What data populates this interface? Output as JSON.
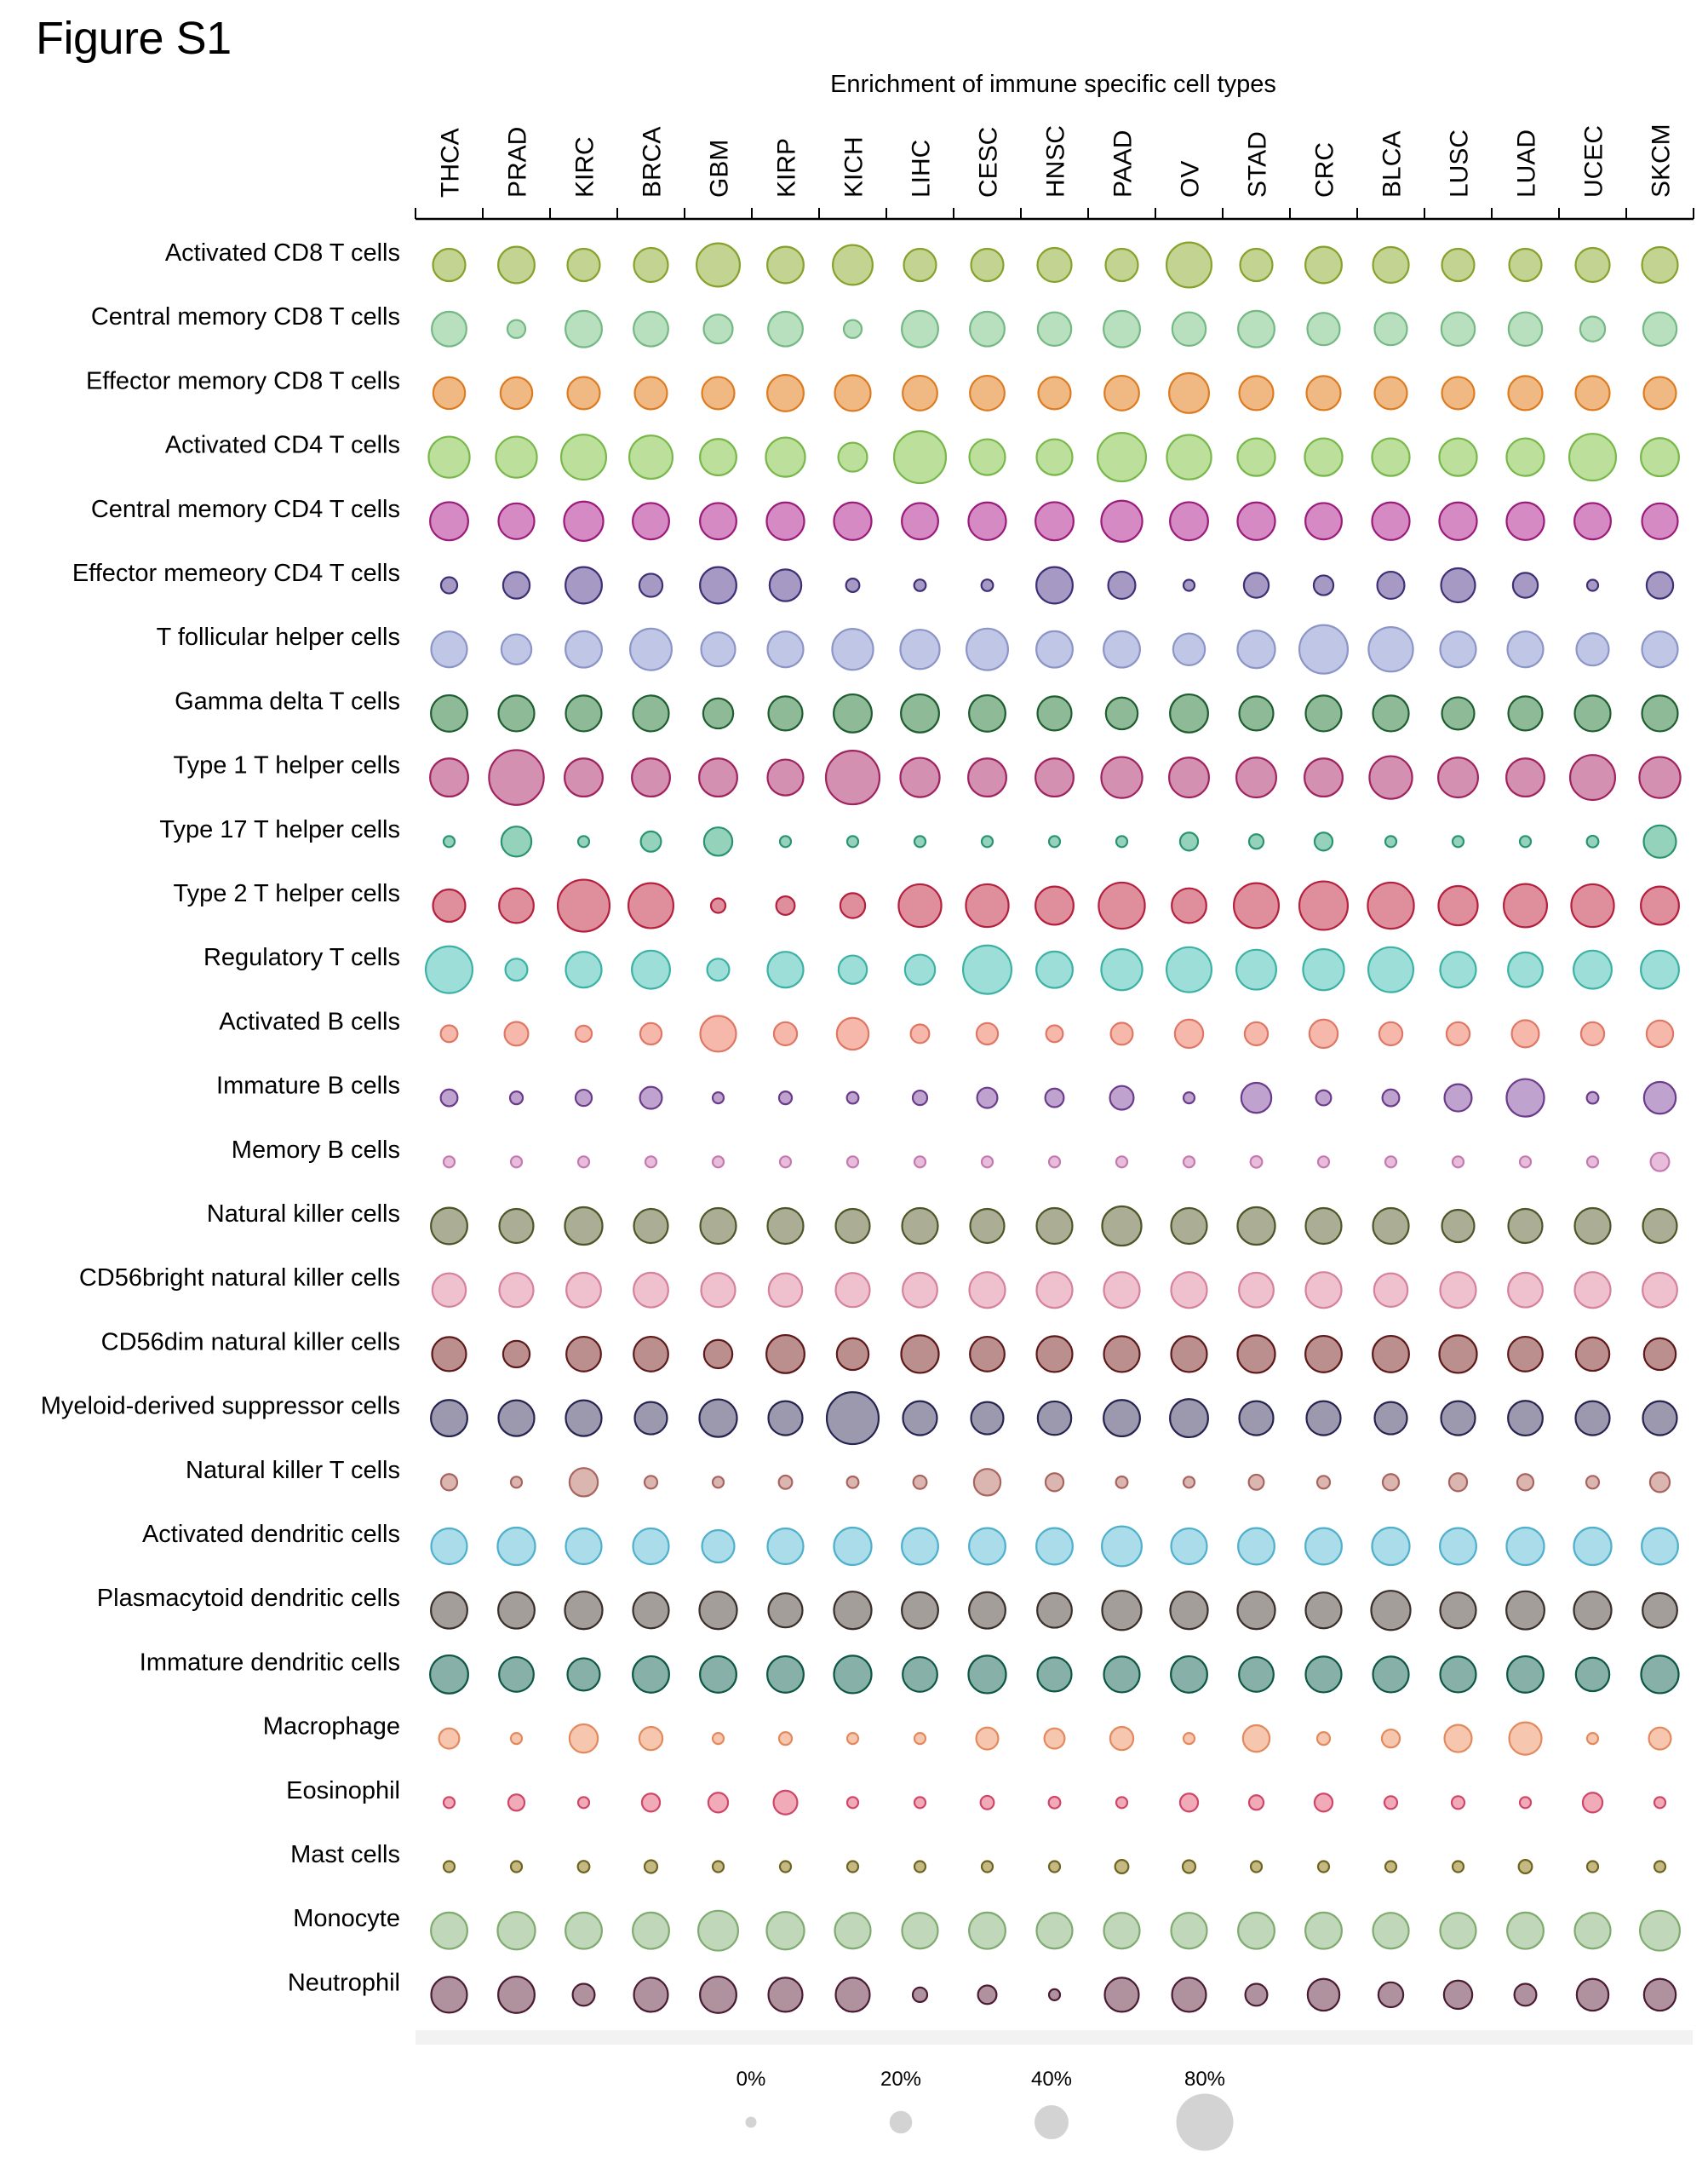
{
  "figure": {
    "label": "Figure S1"
  },
  "chart_data": {
    "type": "scatter",
    "subtype": "bubble-matrix",
    "title": "Enrichment of immune specific cell types",
    "xlabel": "",
    "ylabel": "",
    "grid": false,
    "x_axis_position": "top",
    "size_unit": "percent",
    "size_range": [
      0,
      80
    ],
    "columns": [
      "THCA",
      "PRAD",
      "KIRC",
      "BRCA",
      "GBM",
      "KIRP",
      "KICH",
      "LIHC",
      "CESC",
      "HNSC",
      "PAAD",
      "OV",
      "STAD",
      "CRC",
      "BLCA",
      "LUSC",
      "LUAD",
      "UCEC",
      "SKCM"
    ],
    "rows": [
      {
        "name": "Activated CD8 T cells",
        "fill": "#c3d391",
        "stroke": "#86a22b",
        "values": [
          37,
          44,
          37,
          40,
          56,
          44,
          50,
          37,
          37,
          40,
          37,
          59,
          37,
          44,
          43,
          37,
          37,
          40,
          43
        ]
      },
      {
        "name": "Central memory CD8 T cells",
        "fill": "#b8e0be",
        "stroke": "#74b984",
        "values": [
          41,
          12,
          44,
          41,
          31,
          41,
          12,
          44,
          41,
          39,
          44,
          39,
          44,
          37,
          37,
          39,
          39,
          24,
          39
        ]
      },
      {
        "name": "Effector memory CD8 T cells",
        "fill": "#f0b984",
        "stroke": "#dd7b21",
        "values": [
          36,
          36,
          37,
          37,
          37,
          44,
          43,
          41,
          41,
          37,
          41,
          50,
          40,
          40,
          37,
          37,
          40,
          40,
          37
        ]
      },
      {
        "name": "Activated CD4 T cells",
        "fill": "#bcdf9b",
        "stroke": "#78b84a",
        "values": [
          52,
          52,
          59,
          56,
          44,
          49,
          31,
          71,
          43,
          43,
          65,
          58,
          46,
          46,
          46,
          46,
          46,
          62,
          47
        ]
      },
      {
        "name": "Central memory CD4 T cells",
        "fill": "#d68ac3",
        "stroke": "#9c1c7c",
        "values": [
          47,
          43,
          49,
          44,
          44,
          46,
          46,
          44,
          46,
          47,
          52,
          47,
          46,
          44,
          46,
          46,
          46,
          44,
          43
        ]
      },
      {
        "name": "Effector memeory CD4 T cells",
        "fill": "#a69ac5",
        "stroke": "#3f2f76",
        "values": [
          9,
          27,
          44,
          21,
          44,
          36,
          4,
          1,
          1,
          44,
          28,
          0,
          24,
          15,
          28,
          40,
          24,
          0,
          27
        ]
      },
      {
        "name": "T follicular helper cells",
        "fill": "#c0c6e5",
        "stroke": "#8c95c8",
        "values": [
          43,
          33,
          44,
          53,
          40,
          43,
          52,
          49,
          53,
          44,
          44,
          36,
          46,
          65,
          58,
          43,
          43,
          37,
          43
        ]
      },
      {
        "name": "Gamma delta T cells",
        "fill": "#8fba98",
        "stroke": "#1f5e30",
        "values": [
          44,
          43,
          43,
          43,
          33,
          40,
          47,
          47,
          44,
          40,
          36,
          47,
          40,
          43,
          43,
          37,
          40,
          43,
          43
        ]
      },
      {
        "name": "Type 1 T helper cells",
        "fill": "#d390b1",
        "stroke": "#a0235f",
        "values": [
          47,
          76,
          47,
          47,
          47,
          43,
          74,
          49,
          47,
          47,
          52,
          50,
          50,
          47,
          55,
          50,
          47,
          59,
          52
        ]
      },
      {
        "name": "Type 17 T helper cells",
        "fill": "#94d2bc",
        "stroke": "#2a9470",
        "values": [
          0,
          33,
          0,
          16,
          30,
          0,
          0,
          0,
          0,
          0,
          0,
          12,
          6,
          12,
          0,
          0,
          0,
          1,
          37
        ]
      },
      {
        "name": "Type 2 T helper cells",
        "fill": "#df8e9b",
        "stroke": "#b5203e",
        "values": [
          37,
          41,
          71,
          59,
          6,
          13,
          24,
          55,
          55,
          47,
          61,
          41,
          59,
          65,
          61,
          49,
          56,
          55,
          47
        ]
      },
      {
        "name": "Regulatory T cells",
        "fill": "#9ddfd8",
        "stroke": "#3cb2a4",
        "values": [
          62,
          19,
          43,
          47,
          19,
          43,
          30,
          33,
          65,
          44,
          52,
          59,
          50,
          52,
          59,
          43,
          41,
          47,
          47
        ]
      },
      {
        "name": "Activated B cells",
        "fill": "#f6b8ab",
        "stroke": "#e07664",
        "values": [
          10,
          22,
          9,
          18,
          43,
          21,
          36,
          13,
          18,
          10,
          19,
          30,
          21,
          30,
          21,
          21,
          28,
          21,
          27
        ]
      },
      {
        "name": "Immature B cells",
        "fill": "#c0a2ce",
        "stroke": "#6b3b8c",
        "values": [
          10,
          3,
          9,
          19,
          0,
          3,
          1,
          6,
          16,
          13,
          22,
          0,
          33,
          7,
          10,
          28,
          46,
          1,
          36
        ]
      },
      {
        "name": "Memory B cells",
        "fill": "#e8bcdb",
        "stroke": "#c47ab0",
        "values": [
          0,
          0,
          0,
          0,
          0,
          0,
          0,
          0,
          0,
          0,
          0,
          0,
          1,
          0,
          0,
          0,
          0,
          0,
          13
        ]
      },
      {
        "name": "Natural killer cells",
        "fill": "#abae94",
        "stroke": "#4d5628",
        "values": [
          44,
          40,
          46,
          40,
          43,
          43,
          40,
          43,
          40,
          43,
          49,
          43,
          46,
          43,
          43,
          37,
          40,
          43,
          40
        ]
      },
      {
        "name": "CD56bright natural killer cells",
        "fill": "#efc0cd",
        "stroke": "#d6819d",
        "values": [
          39,
          40,
          41,
          41,
          40,
          39,
          40,
          41,
          43,
          43,
          43,
          43,
          41,
          43,
          39,
          43,
          41,
          43,
          41
        ]
      },
      {
        "name": "CD56dim natural killer cells",
        "fill": "#ba8f8d",
        "stroke": "#5e1a1a",
        "values": [
          40,
          27,
          41,
          41,
          30,
          47,
          36,
          46,
          41,
          43,
          43,
          43,
          46,
          44,
          44,
          46,
          41,
          39,
          36
        ]
      },
      {
        "name": "Myeloid-derived suppressor cells",
        "fill": "#9c98ae",
        "stroke": "#262450",
        "values": [
          44,
          43,
          43,
          37,
          46,
          40,
          71,
          40,
          37,
          39,
          44,
          47,
          40,
          40,
          37,
          40,
          41,
          40,
          40
        ]
      },
      {
        "name": "Natural killer T cells",
        "fill": "#dbb5b0",
        "stroke": "#a8645e",
        "values": [
          9,
          0,
          30,
          3,
          0,
          4,
          1,
          4,
          27,
          12,
          1,
          0,
          7,
          3,
          9,
          12,
          9,
          3,
          15
        ]
      },
      {
        "name": "Activated dendritic cells",
        "fill": "#aadcea",
        "stroke": "#4fb0cc",
        "values": [
          43,
          46,
          43,
          43,
          37,
          43,
          46,
          44,
          44,
          44,
          50,
          43,
          44,
          44,
          46,
          44,
          46,
          46,
          44
        ]
      },
      {
        "name": "Plasmacytoid dendritic cells",
        "fill": "#a39e9a",
        "stroke": "#3a2f2a",
        "values": [
          44,
          44,
          46,
          43,
          46,
          40,
          46,
          44,
          44,
          41,
          49,
          46,
          46,
          43,
          49,
          43,
          47,
          46,
          41
        ]
      },
      {
        "name": "Immature dendritic cells",
        "fill": "#86b0a8",
        "stroke": "#0e5745",
        "values": [
          47,
          41,
          37,
          44,
          44,
          44,
          46,
          41,
          46,
          40,
          43,
          44,
          41,
          43,
          43,
          43,
          44,
          39,
          46
        ]
      },
      {
        "name": "Macrophage",
        "fill": "#f6c6ae",
        "stroke": "#e28a5e",
        "values": [
          16,
          0,
          30,
          21,
          0,
          3,
          0,
          0,
          19,
          16,
          21,
          0,
          27,
          3,
          12,
          28,
          37,
          0,
          19
        ]
      },
      {
        "name": "Eosinophil",
        "fill": "#f0aab8",
        "stroke": "#cf4668",
        "values": [
          0,
          9,
          0,
          12,
          15,
          22,
          0,
          0,
          4,
          1,
          0,
          12,
          6,
          12,
          3,
          3,
          0,
          15,
          0
        ]
      },
      {
        "name": "Mast cells",
        "fill": "#c4b982",
        "stroke": "#6e6320",
        "values": [
          0,
          0,
          1,
          3,
          0,
          0,
          0,
          0,
          0,
          0,
          4,
          3,
          0,
          0,
          0,
          0,
          4,
          0,
          0
        ]
      },
      {
        "name": "Monocyte",
        "fill": "#c0d8b9",
        "stroke": "#7fab70",
        "values": [
          44,
          46,
          44,
          44,
          50,
          46,
          43,
          43,
          44,
          43,
          43,
          43,
          44,
          44,
          43,
          43,
          44,
          43,
          50
        ]
      },
      {
        "name": "Neutrophil",
        "fill": "#b0929e",
        "stroke": "#4a1c33",
        "values": [
          43,
          44,
          19,
          40,
          44,
          40,
          40,
          6,
          13,
          0,
          40,
          40,
          19,
          36,
          24,
          30,
          19,
          36,
          36
        ]
      }
    ],
    "legend": {
      "title": "",
      "position": "bottom-center",
      "items": [
        {
          "label": "0%",
          "value": 0
        },
        {
          "label": "20%",
          "value": 20
        },
        {
          "label": "40%",
          "value": 40
        },
        {
          "label": "80%",
          "value": 80
        }
      ],
      "color": "#d3d3d3"
    },
    "bottom_band_color": "#f2f2f2"
  }
}
